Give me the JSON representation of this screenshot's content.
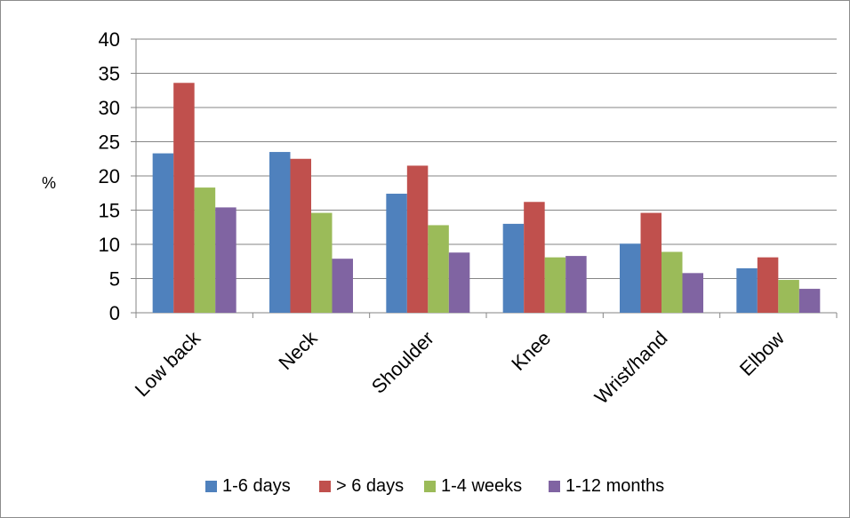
{
  "chart_data": {
    "type": "bar",
    "title": "",
    "xlabel": "",
    "ylabel": "%",
    "ylim": [
      0,
      40
    ],
    "yticks": [
      0,
      5,
      10,
      15,
      20,
      25,
      30,
      35,
      40
    ],
    "grid": true,
    "legend_position": "bottom",
    "categories": [
      "Low back",
      "Neck",
      "Shoulder",
      "Knee",
      "Wrist/hand",
      "Elbow"
    ],
    "series": [
      {
        "name": "1-6 days",
        "color": "#4F81BD",
        "values": [
          23.3,
          23.5,
          17.4,
          13.0,
          10.1,
          6.5
        ]
      },
      {
        "name": "> 6 days",
        "color": "#C0504D",
        "values": [
          33.6,
          22.5,
          21.5,
          16.2,
          14.6,
          8.1
        ]
      },
      {
        "name": "1-4 weeks",
        "color": "#9BBB59",
        "values": [
          18.3,
          14.6,
          12.8,
          8.1,
          8.9,
          4.8
        ]
      },
      {
        "name": "1-12 months",
        "color": "#8064A2",
        "values": [
          15.4,
          7.9,
          8.8,
          8.3,
          5.8,
          3.5
        ]
      }
    ]
  }
}
